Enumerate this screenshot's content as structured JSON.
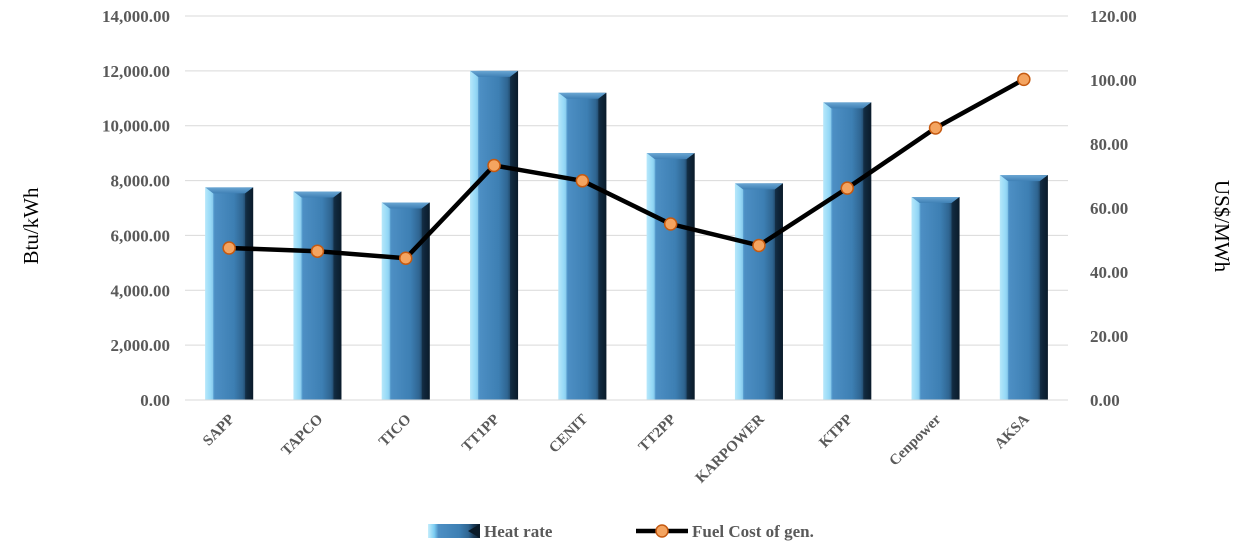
{
  "chart_data": {
    "type": "bar",
    "categories": [
      "SAPP",
      "TAPCO",
      "TICO",
      "TT1PP",
      "CENIT",
      "TT2PP",
      "KARPOWER",
      "KTPP",
      "Cenpower",
      "AKSA"
    ],
    "series": [
      {
        "name": "Heat rate",
        "type": "bar",
        "axis": "left",
        "values": [
          7750,
          7600,
          7200,
          12000,
          11200,
          9000,
          7900,
          10850,
          7400,
          8200
        ]
      },
      {
        "name": "Fuel Cost of gen.",
        "type": "line",
        "axis": "right",
        "values": [
          47.5,
          46.5,
          44.3,
          73.3,
          68.5,
          55.0,
          48.3,
          66.2,
          85.0,
          100.2
        ]
      }
    ],
    "ylabel": "Btu/kWh",
    "y2label": "US$/MWh",
    "ylim": [
      0,
      14000
    ],
    "y2lim": [
      0,
      120
    ],
    "yticks": [
      "0.00",
      "2,000.00",
      "4,000.00",
      "6,000.00",
      "8,000.00",
      "10,000.00",
      "12,000.00",
      "14,000.00"
    ],
    "y2ticks": [
      "0.00",
      "20.00",
      "40.00",
      "60.00",
      "80.00",
      "100.00",
      "120.00"
    ],
    "grid": true,
    "legend_position": "bottom",
    "colors": {
      "bar_light": "#b8e6fb",
      "bar_mid": "#3f80b5",
      "bar_dark": "#10263a",
      "line": "#000000",
      "marker_fill": "#f4a460",
      "marker_stroke": "#c55a11"
    }
  }
}
